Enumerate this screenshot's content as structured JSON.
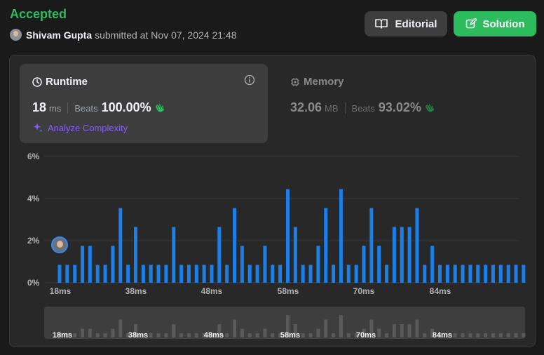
{
  "header": {
    "status": "Accepted",
    "submitter_name": "Shivam Gupta",
    "submitted_text": "submitted at Nov 07, 2024 21:48",
    "editorial_label": "Editorial",
    "solution_label": "Solution"
  },
  "runtime": {
    "title": "Runtime",
    "value": "18",
    "unit": "ms",
    "beats_label": "Beats",
    "beats_value": "100.00%",
    "analyze_label": "Analyze Complexity"
  },
  "memory": {
    "title": "Memory",
    "value": "32.06",
    "unit": "MB",
    "beats_label": "Beats",
    "beats_value": "93.02%"
  },
  "colors": {
    "accent_green": "#2cbb5d",
    "bar_blue": "#1a7fe8",
    "analyze_purple": "#8b5cf6"
  },
  "icons": [
    "user-avatar-icon",
    "book-icon",
    "edit-icon",
    "clock-icon",
    "info-icon",
    "sparkle-icon",
    "cpu-icon",
    "clap-icon"
  ],
  "chart_data": {
    "type": "bar",
    "title": "",
    "xlabel": "",
    "ylabel": "",
    "ylim": [
      0,
      6
    ],
    "y_ticks": [
      "0%",
      "2%",
      "4%",
      "6%"
    ],
    "x_ticks": [
      "18ms",
      "38ms",
      "48ms",
      "58ms",
      "70ms",
      "84ms"
    ],
    "grid": true,
    "values": [
      0.85,
      0.85,
      0.85,
      1.75,
      1.75,
      0.85,
      0.85,
      1.75,
      3.55,
      0.85,
      2.65,
      0.85,
      0.85,
      0.85,
      0.85,
      2.65,
      0.85,
      0.85,
      0.85,
      0.85,
      0.85,
      2.65,
      0.85,
      3.55,
      1.75,
      0.85,
      0.85,
      1.75,
      0.85,
      0.85,
      4.45,
      2.65,
      0.85,
      0.85,
      1.75,
      3.55,
      0.85,
      4.45,
      0.85,
      0.85,
      1.75,
      3.55,
      1.75,
      0.85,
      2.65,
      2.65,
      2.65,
      3.55,
      0.85,
      1.75,
      0.85,
      0.85,
      0.85,
      0.85,
      0.85,
      0.85,
      0.85,
      0.85,
      0.85,
      0.85,
      0.85,
      0.85
    ]
  }
}
